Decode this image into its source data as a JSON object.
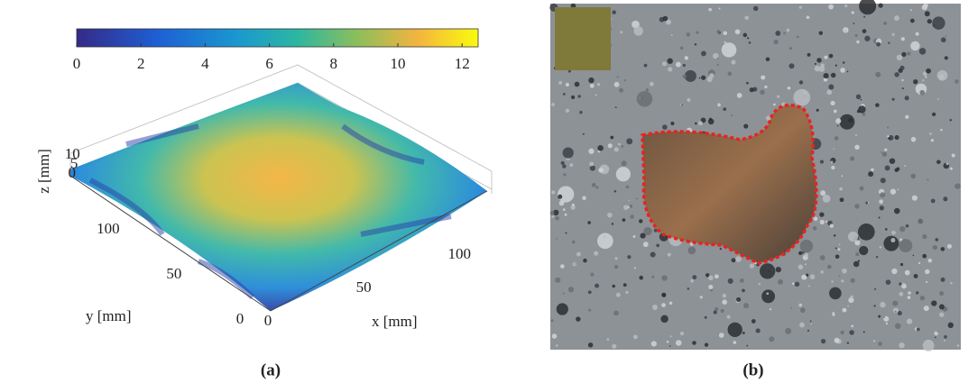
{
  "panel_a": {
    "colorbar": {
      "lim": [
        0,
        12.5
      ],
      "ticks": [
        0,
        2,
        4,
        6,
        8,
        10,
        12
      ]
    },
    "x_axis": {
      "label": "x [mm]",
      "lim": [
        0,
        130
      ],
      "ticks": [
        0,
        50,
        100
      ]
    },
    "y_axis": {
      "label": "y [mm]",
      "lim": [
        0,
        130
      ],
      "ticks": [
        0,
        50,
        100
      ]
    },
    "z_axis": {
      "label": "z [mm]",
      "lim": [
        0,
        12.5
      ],
      "ticks": [
        0,
        5,
        10
      ]
    },
    "caption": "(a)"
  },
  "panel_b": {
    "caption": "(b)"
  }
}
